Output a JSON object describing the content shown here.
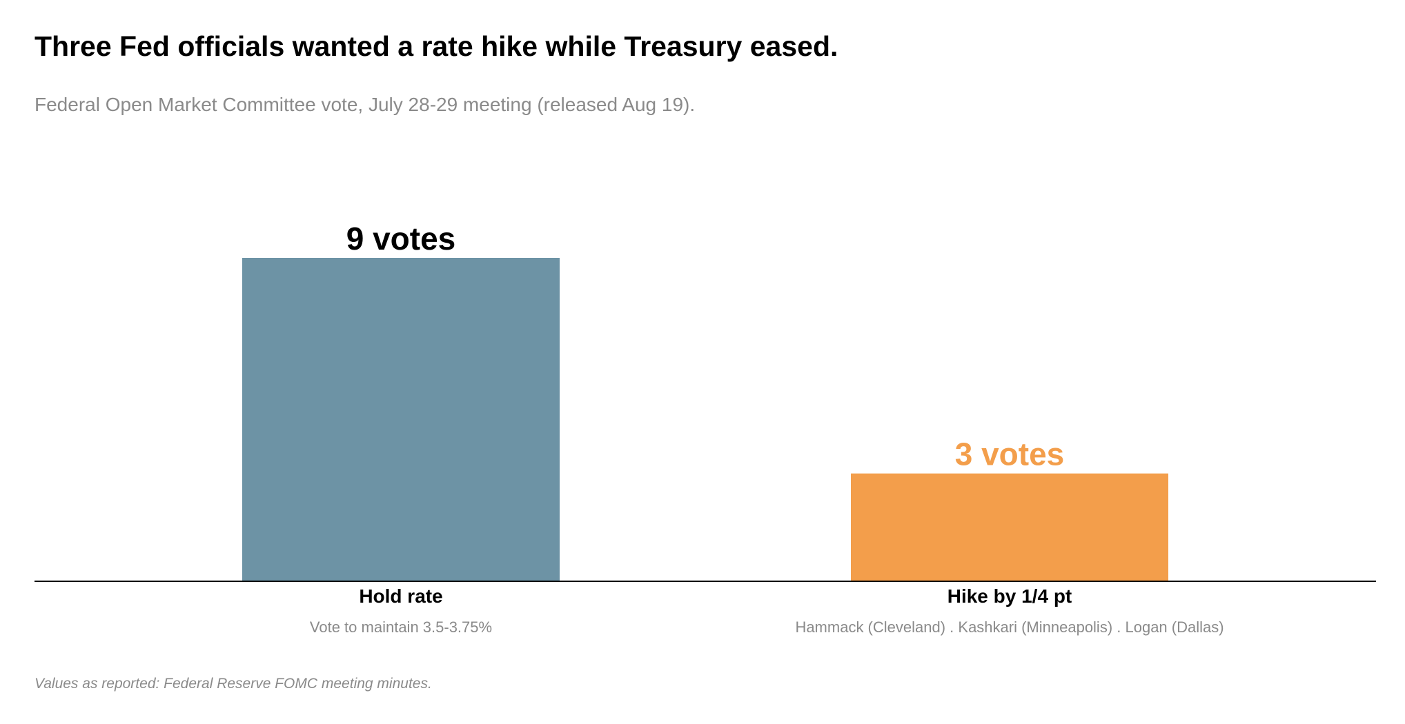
{
  "chart_data": {
    "type": "bar",
    "title": "Three Fed officials wanted a rate hike while Treasury eased.",
    "subtitle": "Federal Open Market Committee vote, July 28-29 meeting (released Aug 19).",
    "categories": [
      "Hold rate",
      "Hike by 1/4 pt"
    ],
    "category_notes": [
      "Vote to maintain 3.5-3.75%",
      "Hammack (Cleveland) . Kashkari (Minneapolis) . Logan (Dallas)"
    ],
    "values": [
      9,
      3
    ],
    "value_labels": [
      "9 votes",
      "3 votes"
    ],
    "colors": [
      "#6d93a5",
      "#f39e4b"
    ],
    "label_colors": [
      "#000000",
      "#f39e4b"
    ],
    "ylim": [
      0,
      9
    ],
    "grid": false,
    "footnote": "Values as reported: Federal Reserve FOMC meeting minutes."
  }
}
